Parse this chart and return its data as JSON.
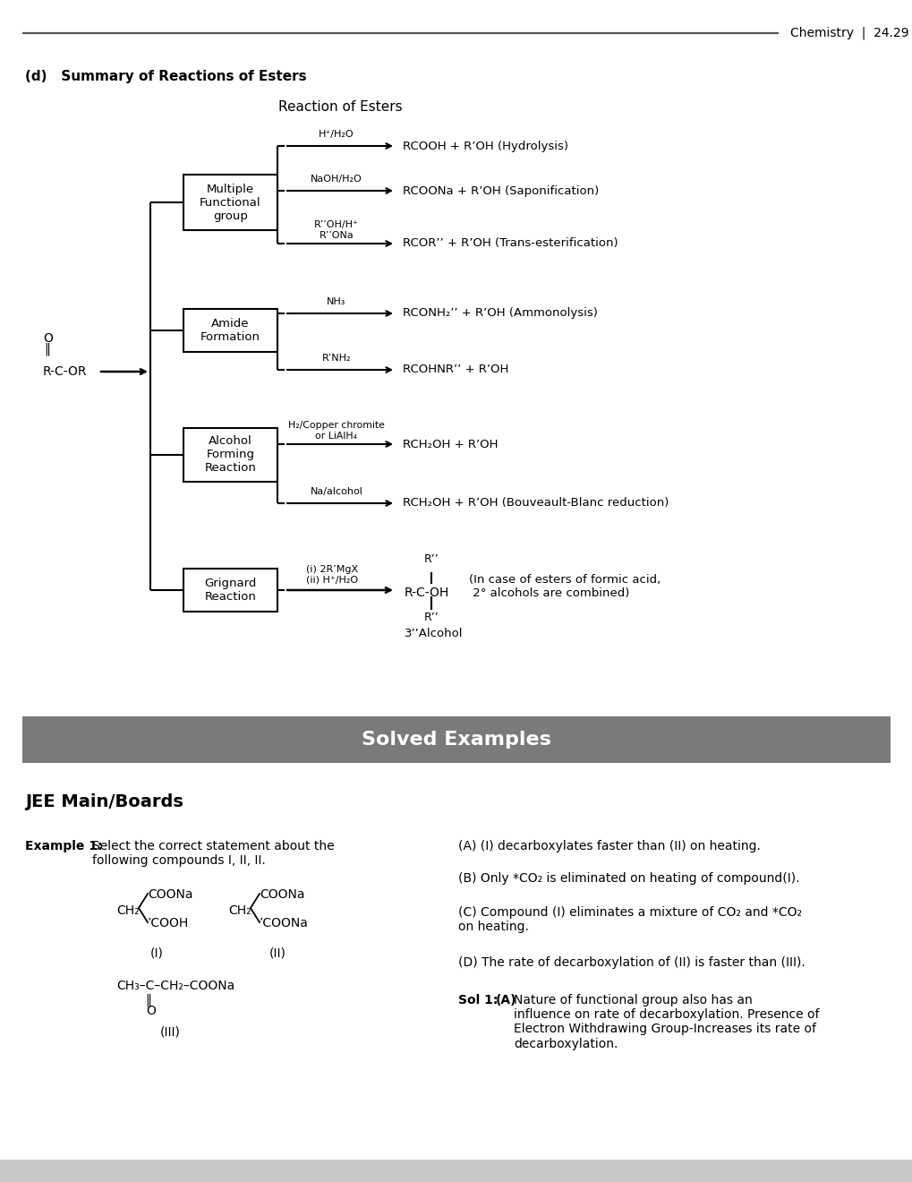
{
  "bg": "#ffffff",
  "header_line_color": "#555555",
  "page_header": "Chemistry  |  24.29",
  "section_label": "(d)   Summary of Reactions of Esters",
  "diagram_title": "Reaction of Esters",
  "box_labels": [
    "Multiple\nFunctional\ngroup",
    "Amide\nFormation",
    "Alcohol\nForming\nReaction",
    "Grignard\nReaction"
  ],
  "reagents_1": [
    "H⁺/H₂O",
    "NaOH/H₂O",
    "R’’OH/H⁺\nR’’ONa"
  ],
  "products_1": [
    "RCOOH + R’OH (Hydrolysis)",
    "RCOONa + R’OH (Saponification)",
    "RCOR’’ + R’OH (Trans-esterification)"
  ],
  "reagents_2": [
    "NH₃",
    "R’NH₂"
  ],
  "products_2": [
    "RCONH₂’’ + R’OH (Ammonolysis)",
    "RCOHNR’’ + R’OH"
  ],
  "reagents_3": [
    "H₂/Copper chromite\nor LiAlH₄",
    "Na/alcohol"
  ],
  "products_3": [
    "RCH₂OH + R’OH",
    "RCH₂OH + R’OH (Bouveault-Blanc reduction)"
  ],
  "reagent_4": "(i) 2R’MgX\n(ii) H⁺/H₂O",
  "grignard_note": "(In case of esters of formic acid,\n 2° alcohols are combined)",
  "banner_text": "Solved Examples",
  "banner_bg": "#7a7a7a",
  "banner_text_color": "#ffffff",
  "jee_heading": "JEE Main/Boards",
  "footer_bg": "#c8c8c8",
  "opt_A": "(A) (I) decarboxylates faster than (II) on heating.",
  "opt_B": "(B) Only *CO₂ is eliminated on heating of compound(I).",
  "opt_C": "(C) Compound (I) eliminates a mixture of CO₂ and *CO₂\non heating.",
  "opt_D": "(D) The rate of decarboxylation of (II) is faster than (III).",
  "sol_body": "Nature of functional group also has an\ninfluence on rate of decarboxylation. Presence of\nElectron Withdrawing Group-Increases its rate of\ndecarboxylation."
}
